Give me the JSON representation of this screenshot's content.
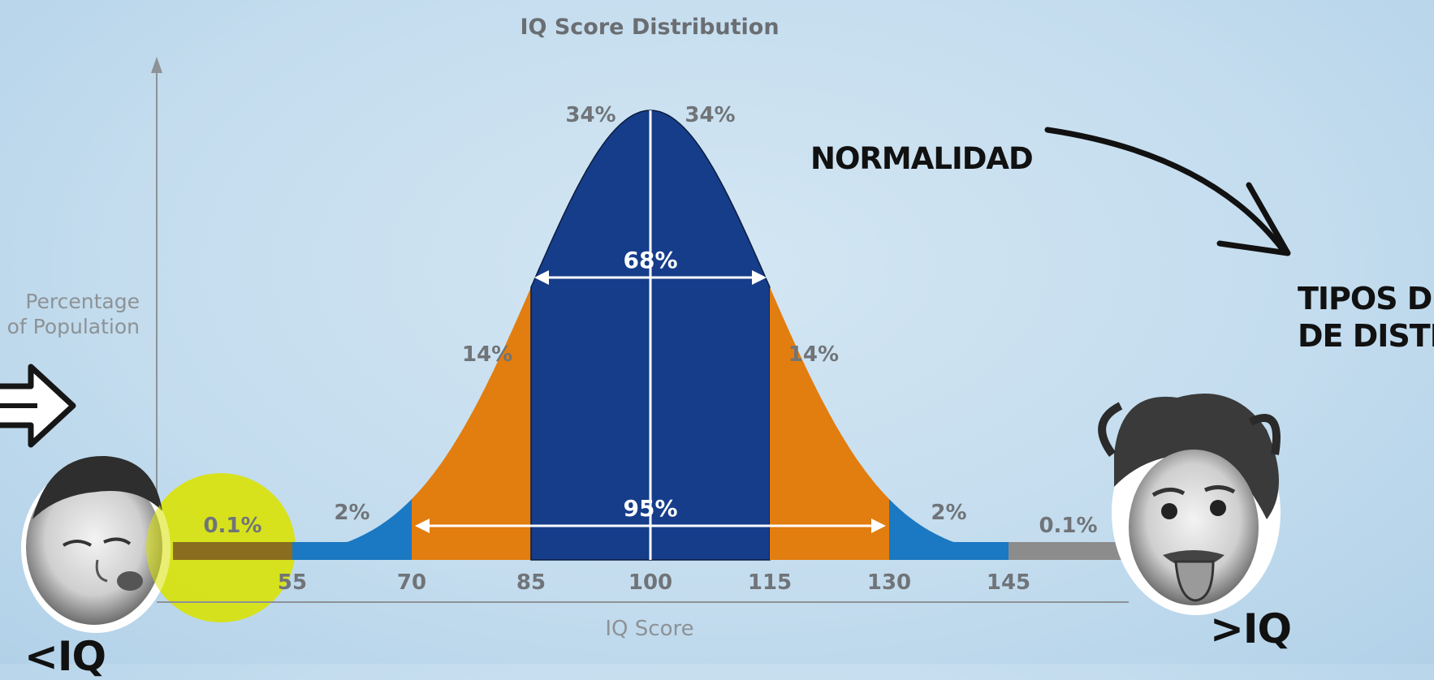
{
  "chart_data": {
    "type": "area",
    "title": "IQ Score Distribution",
    "xlabel": "IQ Score",
    "ylabel": "Percentage\nof Population",
    "x_ticks": [
      "55",
      "70",
      "85",
      "100",
      "115",
      "130",
      "145"
    ],
    "mean": 100,
    "sd": 15,
    "bands": [
      {
        "from": 40,
        "to": 55,
        "percent": "0.1%",
        "color": "#8a6d1e"
      },
      {
        "from": 55,
        "to": 70,
        "percent": "2%",
        "color": "#1b78c2"
      },
      {
        "from": 70,
        "to": 85,
        "percent": "14%",
        "color": "#e27d0f"
      },
      {
        "from": 85,
        "to": 100,
        "percent": "34%",
        "color": "#163d8a"
      },
      {
        "from": 100,
        "to": 115,
        "percent": "34%",
        "color": "#163d8a"
      },
      {
        "from": 115,
        "to": 130,
        "percent": "14%",
        "color": "#e27d0f"
      },
      {
        "from": 130,
        "to": 145,
        "percent": "2%",
        "color": "#1b78c2"
      },
      {
        "from": 145,
        "to": 160,
        "percent": "0.1%",
        "color": "#8c8c8c"
      }
    ],
    "ranges": [
      {
        "from": 85,
        "to": 115,
        "label": "68%"
      },
      {
        "from": 70,
        "to": 130,
        "label": "95%"
      }
    ],
    "grid": false,
    "legend": "none"
  },
  "annotations": {
    "normalidad": "NORMALIDAD",
    "tipos": "TIPOS DE\nDE DISTR",
    "greater_iq": ">IQ",
    "less_iq": "<IQ"
  },
  "colors": {
    "background": "#c6deef",
    "highlight_circle": "#d6e000",
    "axis": "#8d9296",
    "arrow_white": "#ffffff"
  },
  "icons": {
    "left_face": "caricature-face-icon",
    "right_face": "einstein-face-icon",
    "left_arrow": "hollow-right-arrow-icon",
    "swoosh_arrow": "curved-arrow-icon"
  }
}
